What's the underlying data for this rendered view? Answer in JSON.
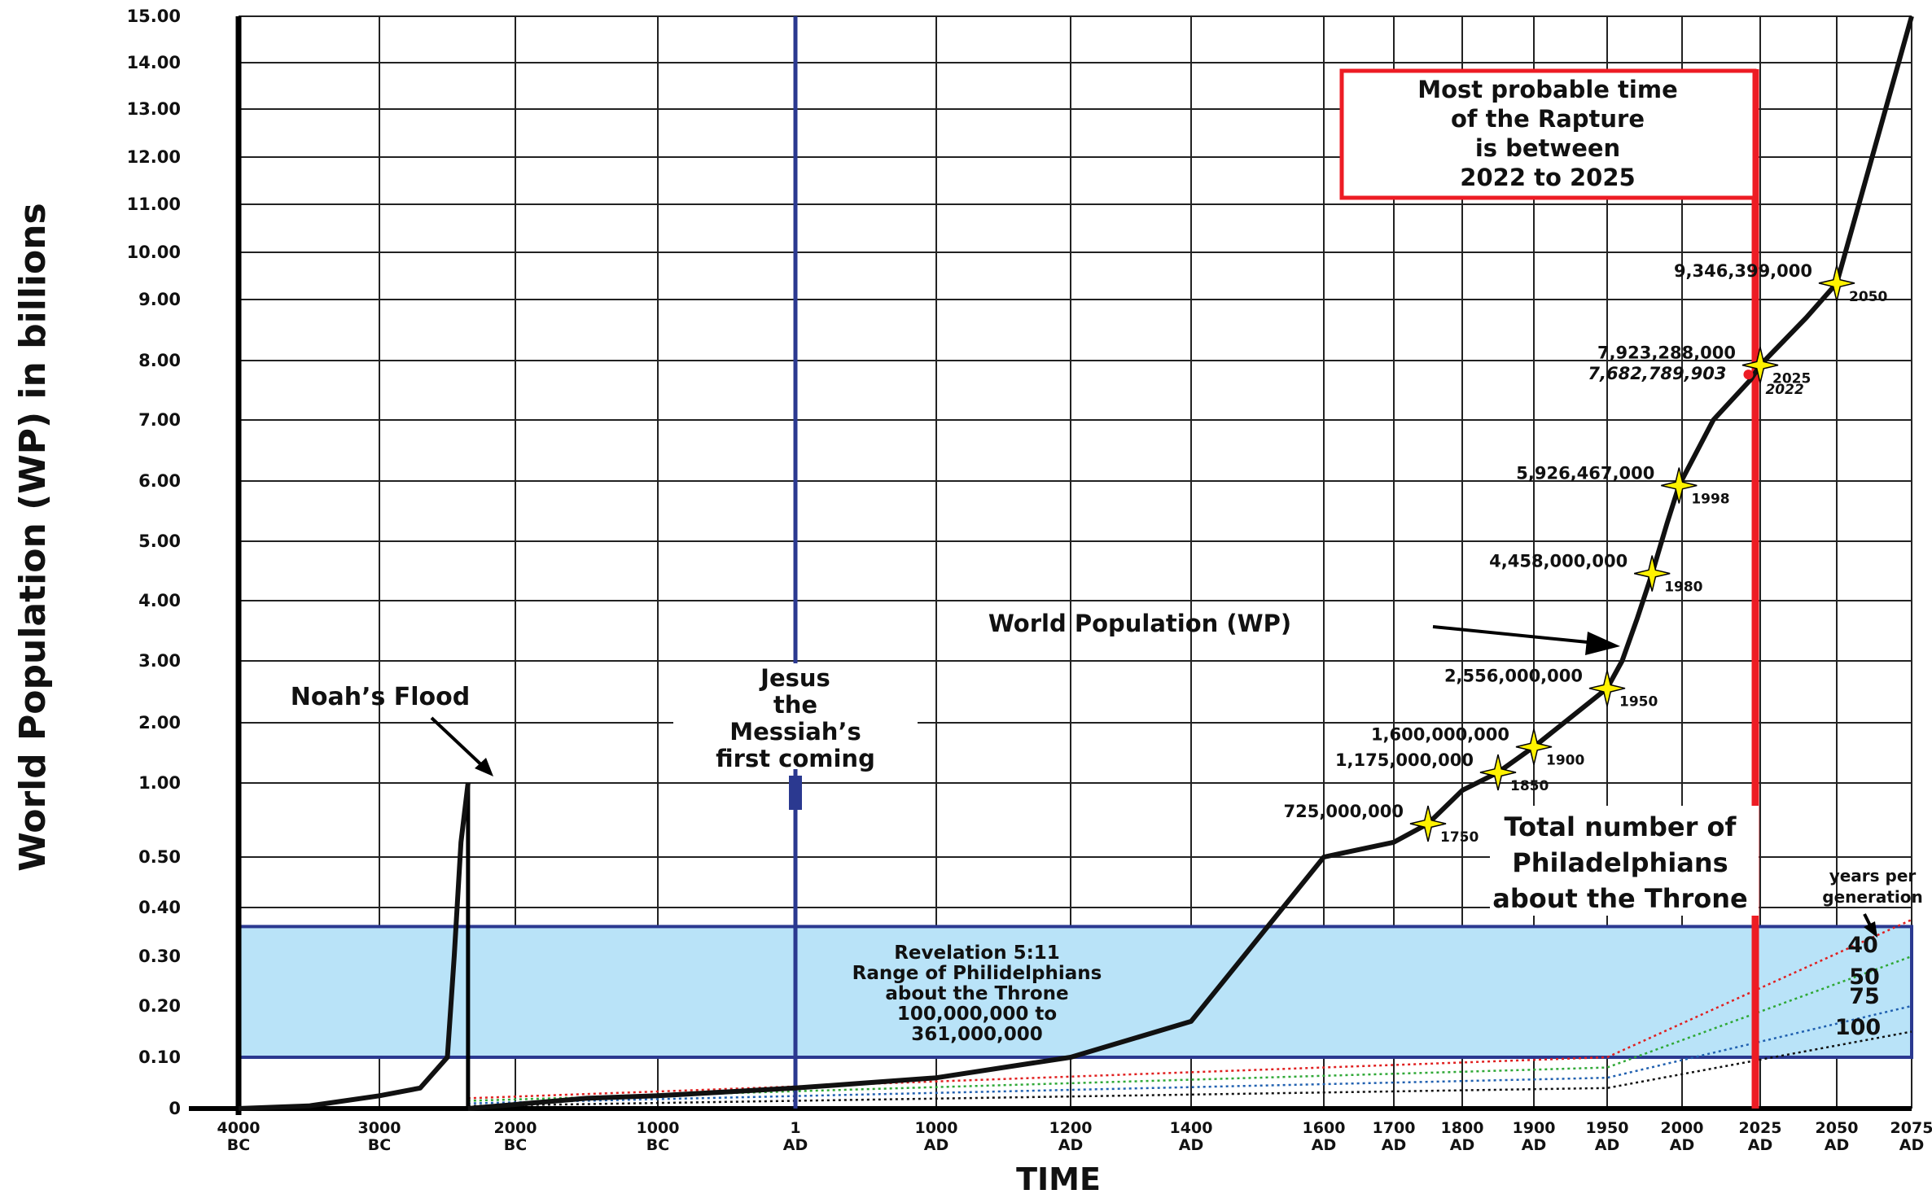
{
  "chart_data": {
    "type": "line",
    "ylabel": "World Population (WP) in billions",
    "xlabel": "TIME",
    "ylim": [
      0,
      15
    ],
    "y_ticks": [
      "15.00",
      "14.00",
      "13.00",
      "12.00",
      "11.00",
      "10.00",
      "9.00",
      "8.00",
      "7.00",
      "6.00",
      "5.00",
      "4.00",
      "3.00",
      "2.00",
      "1.00",
      "0.50",
      "0.40",
      "0.30",
      "0.20",
      "0.10",
      "0"
    ],
    "x_ticks": [
      {
        "top": "4000",
        "bottom": "BC"
      },
      {
        "top": "3000",
        "bottom": "BC"
      },
      {
        "top": "2000",
        "bottom": "BC"
      },
      {
        "top": "1000",
        "bottom": "BC"
      },
      {
        "top": "1",
        "bottom": "AD"
      },
      {
        "top": "1000",
        "bottom": "AD"
      },
      {
        "top": "1200",
        "bottom": "AD"
      },
      {
        "top": "1400",
        "bottom": "AD"
      },
      {
        "top": "1600",
        "bottom": "AD"
      },
      {
        "top": "1700",
        "bottom": "AD"
      },
      {
        "top": "1800",
        "bottom": "AD"
      },
      {
        "top": "1900",
        "bottom": "AD"
      },
      {
        "top": "1950",
        "bottom": "AD"
      },
      {
        "top": "2000",
        "bottom": "AD"
      },
      {
        "top": "2025",
        "bottom": "AD"
      },
      {
        "top": "2050",
        "bottom": "AD"
      },
      {
        "top": "2075",
        "bottom": "AD"
      }
    ],
    "grid": true,
    "series": [
      {
        "name": "World Population (WP)",
        "color": "#111111",
        "x": [
          -4000,
          -3500,
          -3000,
          -2700,
          -2500,
          -2450,
          -2400,
          -2348,
          -2348,
          -1500,
          -1000,
          1,
          500,
          1000,
          1200,
          1400,
          1600,
          1700,
          1750,
          1800,
          1850,
          1900,
          1950,
          1960,
          1970,
          1980,
          1990,
          1998,
          2010,
          2022,
          2025,
          2040,
          2050,
          2075
        ],
        "y": [
          0,
          0.005,
          0.025,
          0.04,
          0.1,
          0.3,
          0.6,
          1.0,
          0,
          0.02,
          0.025,
          0.04,
          0.05,
          0.06,
          0.1,
          0.17,
          0.5,
          0.6,
          0.725,
          0.95,
          1.175,
          1.6,
          2.556,
          3.0,
          3.7,
          4.458,
          5.3,
          5.926,
          7.0,
          7.683,
          7.923,
          8.7,
          9.346,
          15.0
        ]
      },
      {
        "name": "40",
        "color": "#e02020",
        "x": [
          -2348,
          1950,
          2075
        ],
        "y": [
          0.02,
          0.1,
          0.375
        ]
      },
      {
        "name": "50",
        "color": "#2fa836",
        "x": [
          -2348,
          1950,
          2075
        ],
        "y": [
          0.015,
          0.08,
          0.3
        ]
      },
      {
        "name": "75",
        "color": "#2060b0",
        "x": [
          -2348,
          1950,
          2075
        ],
        "y": [
          0.01,
          0.06,
          0.2
        ]
      },
      {
        "name": "100",
        "color": "#111111",
        "x": [
          -2348,
          1950,
          2075
        ],
        "y": [
          0.005,
          0.04,
          0.15
        ]
      }
    ],
    "points": [
      {
        "label": "725,000,000",
        "year": "1750",
        "x": 1750,
        "y": 0.725
      },
      {
        "label": "1,175,000,000",
        "year": "1850",
        "x": 1850,
        "y": 1.175
      },
      {
        "label": "1,600,000,000",
        "year": "1900",
        "x": 1900,
        "y": 1.6
      },
      {
        "label": "2,556,000,000",
        "year": "1950",
        "x": 1950,
        "y": 2.556
      },
      {
        "label": "4,458,000,000",
        "year": "1980",
        "x": 1980,
        "y": 4.458
      },
      {
        "label": "5,926,467,000",
        "year": "1998",
        "x": 1998,
        "y": 5.926
      },
      {
        "label": "7,923,288,000",
        "year": "2025",
        "x": 2025,
        "y": 7.923
      },
      {
        "label": "9,346,399,000",
        "year": "2050",
        "x": 2050,
        "y": 9.346
      }
    ],
    "point_2022": {
      "label": "7,682,789,903",
      "year": "2022"
    },
    "range_band": {
      "y": [
        0.1,
        0.361
      ],
      "lines": [
        "Revelation 5:11",
        "Range of Philidelphians",
        "about the Throne",
        "100,000,000 to",
        "361,000,000"
      ]
    },
    "annotations": {
      "flood": "Noah’s Flood",
      "jesus": [
        "Jesus",
        "the",
        "Messiah’s",
        "first coming"
      ],
      "wp": "World Population (WP)",
      "rapture": [
        "Most probable time",
        "of the Rapture",
        "is between",
        "2022 to 2025"
      ],
      "total": [
        "Total number of",
        "Philadelphians",
        "about the Throne"
      ],
      "years": [
        "years per",
        "generation"
      ]
    },
    "colors": {
      "grid": "#222222",
      "jesus": "#2b3990",
      "rapture": "#ed1c24",
      "band": "#b9e3f8",
      "band_border": "#2b3990",
      "star": "#fff200"
    }
  }
}
